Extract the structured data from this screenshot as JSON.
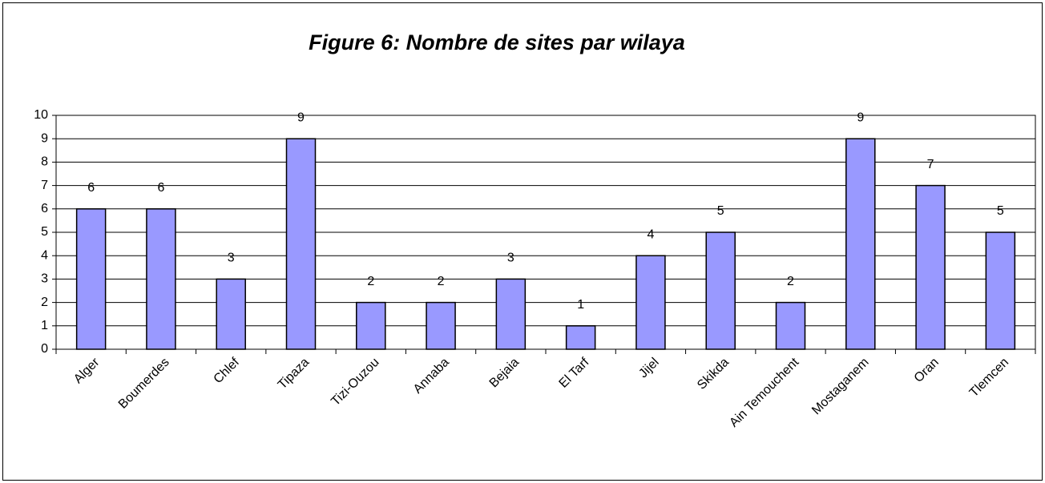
{
  "chart_data": {
    "type": "bar",
    "title": "Figure 6: Nombre de sites par wilaya",
    "categories": [
      "Alger",
      "Boumerdes",
      "Chlef",
      "Tipaza",
      "Tizi-Ouzou",
      "Annaba",
      "Bejaia",
      "El Tarf",
      "Jijel",
      "Skikda",
      "Ain Temouchent",
      "Mostaganem",
      "Oran",
      "Tlemcen"
    ],
    "values": [
      6,
      6,
      3,
      9,
      2,
      2,
      3,
      1,
      4,
      5,
      2,
      9,
      7,
      5
    ],
    "color": "#9999ff",
    "ylim": [
      0,
      10
    ],
    "yticks": [
      0,
      1,
      2,
      3,
      4,
      5,
      6,
      7,
      8,
      9,
      10
    ],
    "grid": true
  }
}
